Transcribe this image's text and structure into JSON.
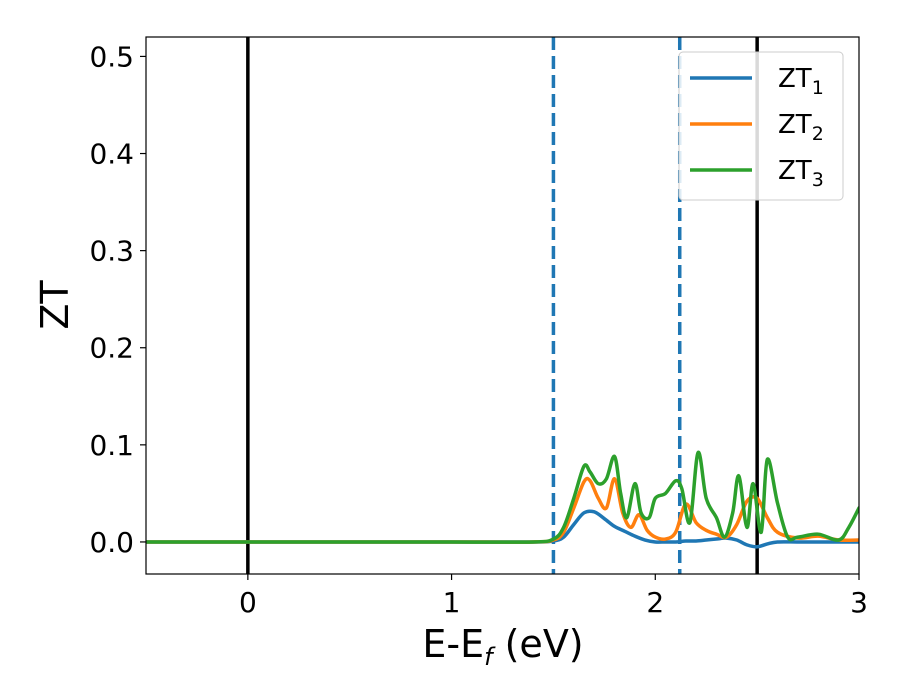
{
  "chart_data": {
    "type": "line",
    "xlabel": {
      "base": "E-E",
      "sub": "f",
      "suffix": " (eV)"
    },
    "ylabel": "ZT",
    "xlim": [
      -0.5,
      3.0
    ],
    "ylim": [
      -0.033,
      0.52
    ],
    "xticks": [
      0,
      1,
      2,
      3
    ],
    "xtick_labels": [
      "0",
      "1",
      "2",
      "3"
    ],
    "yticks": [
      0.0,
      0.1,
      0.2,
      0.3,
      0.4,
      0.5
    ],
    "ytick_labels": [
      "0.0",
      "0.1",
      "0.2",
      "0.3",
      "0.4",
      "0.5"
    ],
    "grid": false,
    "legend_position": "top-right",
    "vertical_lines": [
      {
        "x": 0.0,
        "style": "solid",
        "color": "#000000"
      },
      {
        "x": 2.5,
        "style": "solid",
        "color": "#000000"
      },
      {
        "x": 1.5,
        "style": "dashed",
        "color": "#1f77b4"
      },
      {
        "x": 2.12,
        "style": "dashed",
        "color": "#1f77b4"
      }
    ],
    "series": [
      {
        "name": "ZT1",
        "name_base": "ZT",
        "name_sub": "1",
        "color": "#1f77b4",
        "x": [
          -0.5,
          0.0,
          0.5,
          1.0,
          1.4,
          1.5,
          1.55,
          1.6,
          1.65,
          1.7,
          1.75,
          1.8,
          1.85,
          1.9,
          1.95,
          2.0,
          2.05,
          2.1,
          2.15,
          2.2,
          2.25,
          2.3,
          2.35,
          2.4,
          2.45,
          2.5,
          2.55,
          2.6,
          2.7,
          2.8,
          2.9,
          3.0
        ],
        "y": [
          0,
          0,
          0,
          0,
          0,
          0.001,
          0.005,
          0.018,
          0.03,
          0.031,
          0.024,
          0.016,
          0.011,
          0.006,
          0.002,
          0.0,
          0.0,
          0.0,
          0.001,
          0.001,
          0.002,
          0.003,
          0.004,
          0.002,
          -0.003,
          -0.005,
          -0.002,
          0.0,
          0.0,
          0.0,
          0.0,
          0.0
        ]
      },
      {
        "name": "ZT2",
        "name_base": "ZT",
        "name_sub": "2",
        "color": "#ff7f0e",
        "x": [
          -0.5,
          0.0,
          0.5,
          1.0,
          1.4,
          1.5,
          1.55,
          1.6,
          1.65,
          1.68,
          1.72,
          1.76,
          1.8,
          1.84,
          1.88,
          1.92,
          1.96,
          2.0,
          2.05,
          2.1,
          2.15,
          2.2,
          2.25,
          2.3,
          2.35,
          2.4,
          2.45,
          2.5,
          2.55,
          2.6,
          2.7,
          2.8,
          2.9,
          3.0
        ],
        "y": [
          0,
          0,
          0,
          0,
          0,
          0.002,
          0.01,
          0.035,
          0.062,
          0.063,
          0.045,
          0.035,
          0.065,
          0.03,
          0.015,
          0.028,
          0.012,
          0.005,
          0.003,
          0.01,
          0.039,
          0.02,
          0.012,
          0.008,
          0.005,
          0.018,
          0.042,
          0.045,
          0.025,
          0.01,
          0.004,
          0.006,
          0.002,
          0.002
        ]
      },
      {
        "name": "ZT3",
        "name_base": "ZT",
        "name_sub": "3",
        "color": "#2ca02c",
        "x": [
          -0.5,
          0.0,
          0.5,
          1.0,
          1.4,
          1.5,
          1.55,
          1.6,
          1.65,
          1.68,
          1.72,
          1.76,
          1.8,
          1.83,
          1.86,
          1.9,
          1.93,
          1.97,
          2.0,
          2.05,
          2.1,
          2.13,
          2.17,
          2.21,
          2.25,
          2.3,
          2.34,
          2.38,
          2.41,
          2.45,
          2.48,
          2.52,
          2.55,
          2.6,
          2.65,
          2.7,
          2.8,
          2.9,
          2.95,
          3.0
        ],
        "y": [
          0,
          0,
          0,
          0,
          0,
          0.003,
          0.015,
          0.045,
          0.078,
          0.072,
          0.06,
          0.065,
          0.088,
          0.05,
          0.025,
          0.06,
          0.03,
          0.025,
          0.045,
          0.05,
          0.063,
          0.055,
          0.02,
          0.092,
          0.045,
          0.025,
          0.005,
          0.03,
          0.068,
          0.015,
          0.06,
          0.01,
          0.085,
          0.04,
          0.005,
          0.005,
          0.008,
          0.002,
          0.015,
          0.035
        ]
      }
    ]
  }
}
